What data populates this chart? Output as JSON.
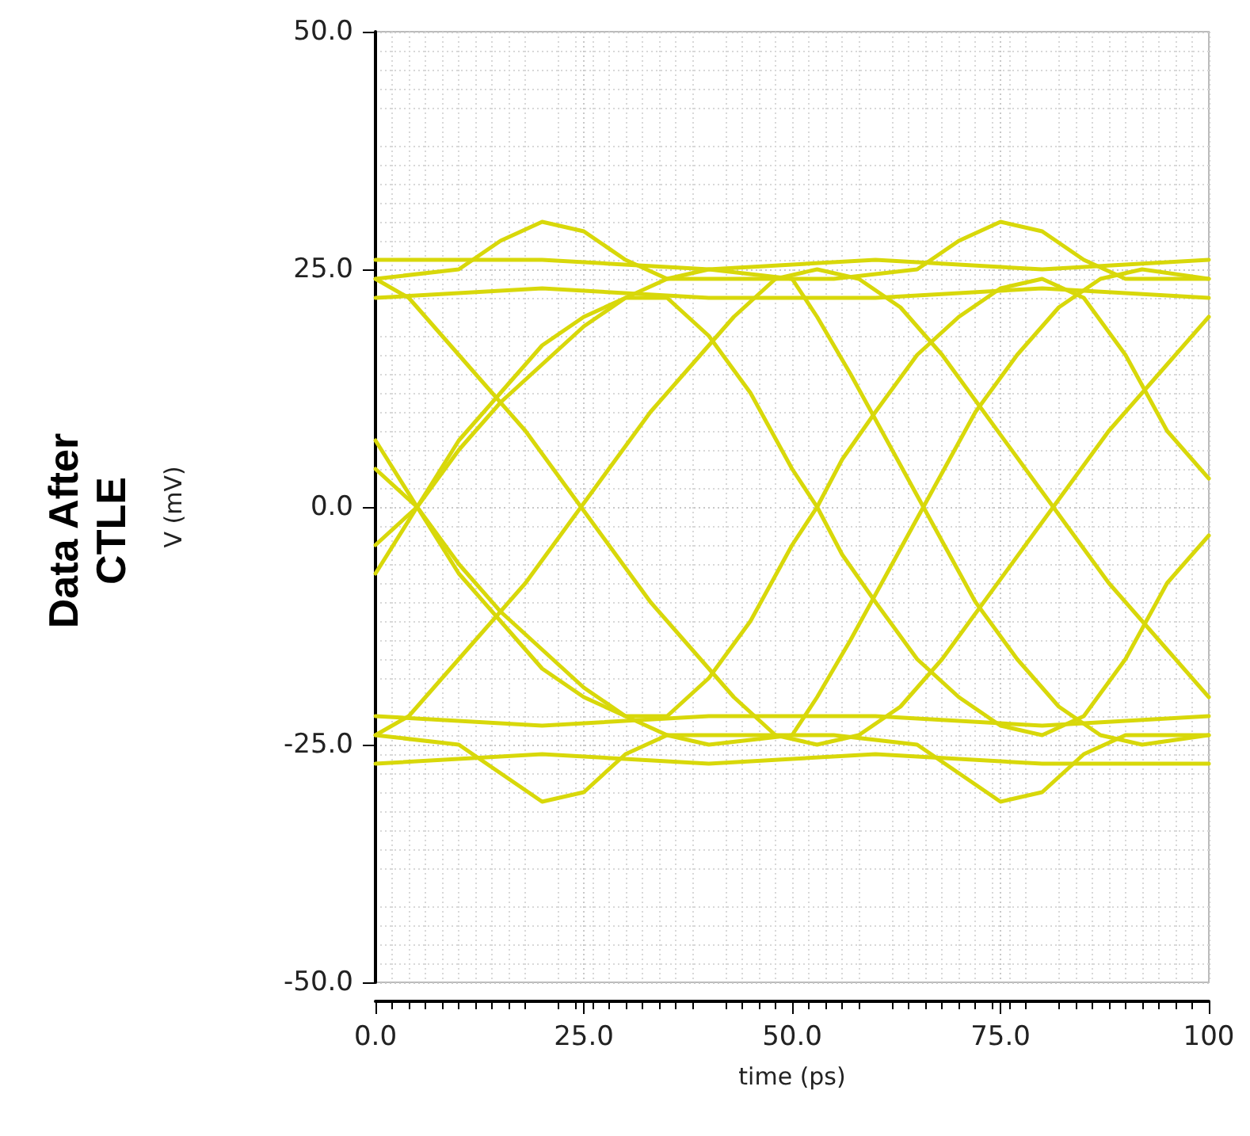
{
  "chart_data": {
    "type": "line",
    "title": "Data After CTLE",
    "xlabel": "time (ps)",
    "ylabel": "V (mV)",
    "xlim": [
      0,
      100
    ],
    "xticks": [
      {
        "value": 0,
        "label": "0.0"
      },
      {
        "value": 25,
        "label": "25.0"
      },
      {
        "value": 50,
        "label": "50.0"
      },
      {
        "value": 75,
        "label": "75.0"
      },
      {
        "value": 100,
        "label": "100"
      }
    ],
    "ylim": [
      -50,
      50
    ],
    "yticks": [
      {
        "value": -50,
        "label": "-50.0"
      },
      {
        "value": -25,
        "label": "-25.0"
      },
      {
        "value": 0,
        "label": "0.0"
      },
      {
        "value": 25,
        "label": "25.0"
      },
      {
        "value": 50,
        "label": "50.0"
      }
    ],
    "grid": true,
    "marker": "none",
    "line_style": "solid",
    "series": [
      {
        "color": "#d8d80a",
        "x": [
          0,
          10,
          15,
          20,
          25,
          30,
          35,
          45,
          55,
          65,
          70,
          75,
          80,
          85,
          90,
          100
        ],
        "values": [
          24,
          25,
          28,
          30,
          29,
          26,
          24,
          24,
          24,
          25,
          28,
          30,
          29,
          26,
          24,
          24
        ]
      },
      {
        "color": "#d8d80a",
        "x": [
          0,
          20,
          40,
          60,
          80,
          100
        ],
        "values": [
          22,
          23,
          22,
          22,
          23,
          22
        ]
      },
      {
        "color": "#d8d80a",
        "x": [
          0,
          20,
          40,
          60,
          80,
          100
        ],
        "values": [
          26,
          26,
          25,
          26,
          25,
          26
        ]
      },
      {
        "color": "#d8d80a",
        "x": [
          0,
          10,
          15,
          20,
          25,
          30,
          35,
          45,
          55,
          65,
          70,
          75,
          80,
          85,
          90,
          100
        ],
        "values": [
          -24,
          -25,
          -28,
          -31,
          -30,
          -26,
          -24,
          -24,
          -24,
          -25,
          -28,
          -31,
          -30,
          -26,
          -24,
          -24
        ]
      },
      {
        "color": "#d8d80a",
        "x": [
          0,
          20,
          40,
          60,
          80,
          100
        ],
        "values": [
          -22,
          -23,
          -22,
          -22,
          -23,
          -22
        ]
      },
      {
        "color": "#d8d80a",
        "x": [
          0,
          20,
          40,
          60,
          80,
          100
        ],
        "values": [
          -27,
          -26,
          -27,
          -26,
          -27,
          -27
        ]
      },
      {
        "color": "#d8d80a",
        "x": [
          0,
          5,
          10,
          15,
          20,
          25,
          30,
          35,
          40,
          45,
          50,
          53,
          56,
          60,
          65,
          70,
          75,
          80,
          85,
          90,
          95,
          100
        ],
        "values": [
          -7,
          0,
          7,
          12,
          17,
          20,
          22,
          22,
          18,
          12,
          4,
          0,
          -5,
          -10,
          -16,
          -20,
          -23,
          -24,
          -22,
          -16,
          -8,
          -3
        ]
      },
      {
        "color": "#d8d80a",
        "x": [
          0,
          5,
          10,
          15,
          20,
          25,
          30,
          35,
          40,
          45,
          50,
          53,
          56,
          60,
          65,
          70,
          75,
          80,
          85,
          90,
          95,
          100
        ],
        "values": [
          7,
          0,
          -7,
          -12,
          -17,
          -20,
          -22,
          -22,
          -18,
          -12,
          -4,
          0,
          5,
          10,
          16,
          20,
          23,
          24,
          22,
          16,
          8,
          3
        ]
      },
      {
        "color": "#d8d80a",
        "x": [
          0,
          5,
          10,
          15,
          20,
          25,
          30,
          35,
          40,
          50,
          53,
          57,
          62,
          67,
          72,
          77,
          82,
          87,
          92,
          100
        ],
        "values": [
          -4,
          0,
          6,
          11,
          15,
          19,
          22,
          24,
          25,
          24,
          20,
          14,
          6,
          -2,
          -10,
          -16,
          -21,
          -24,
          -25,
          -24
        ]
      },
      {
        "color": "#d8d80a",
        "x": [
          0,
          5,
          10,
          15,
          20,
          25,
          30,
          35,
          40,
          50,
          53,
          57,
          62,
          67,
          72,
          77,
          82,
          87,
          92,
          100
        ],
        "values": [
          4,
          0,
          -6,
          -11,
          -15,
          -19,
          -22,
          -24,
          -25,
          -24,
          -20,
          -14,
          -6,
          2,
          10,
          16,
          21,
          24,
          25,
          24
        ]
      },
      {
        "color": "#d8d80a",
        "x": [
          0,
          4,
          8,
          13,
          18,
          23,
          28,
          33,
          38,
          43,
          48,
          53,
          58,
          63,
          68,
          73,
          78,
          83,
          88,
          93,
          100
        ],
        "values": [
          -24,
          -22,
          -18,
          -13,
          -8,
          -2,
          4,
          10,
          15,
          20,
          24,
          25,
          24,
          21,
          16,
          10,
          4,
          -2,
          -8,
          -13,
          -20
        ]
      },
      {
        "color": "#d8d80a",
        "x": [
          0,
          4,
          8,
          13,
          18,
          23,
          28,
          33,
          38,
          43,
          48,
          53,
          58,
          63,
          68,
          73,
          78,
          83,
          88,
          93,
          100
        ],
        "values": [
          24,
          22,
          18,
          13,
          8,
          2,
          -4,
          -10,
          -15,
          -20,
          -24,
          -25,
          -24,
          -21,
          -16,
          -10,
          -4,
          2,
          8,
          13,
          20
        ]
      }
    ]
  }
}
